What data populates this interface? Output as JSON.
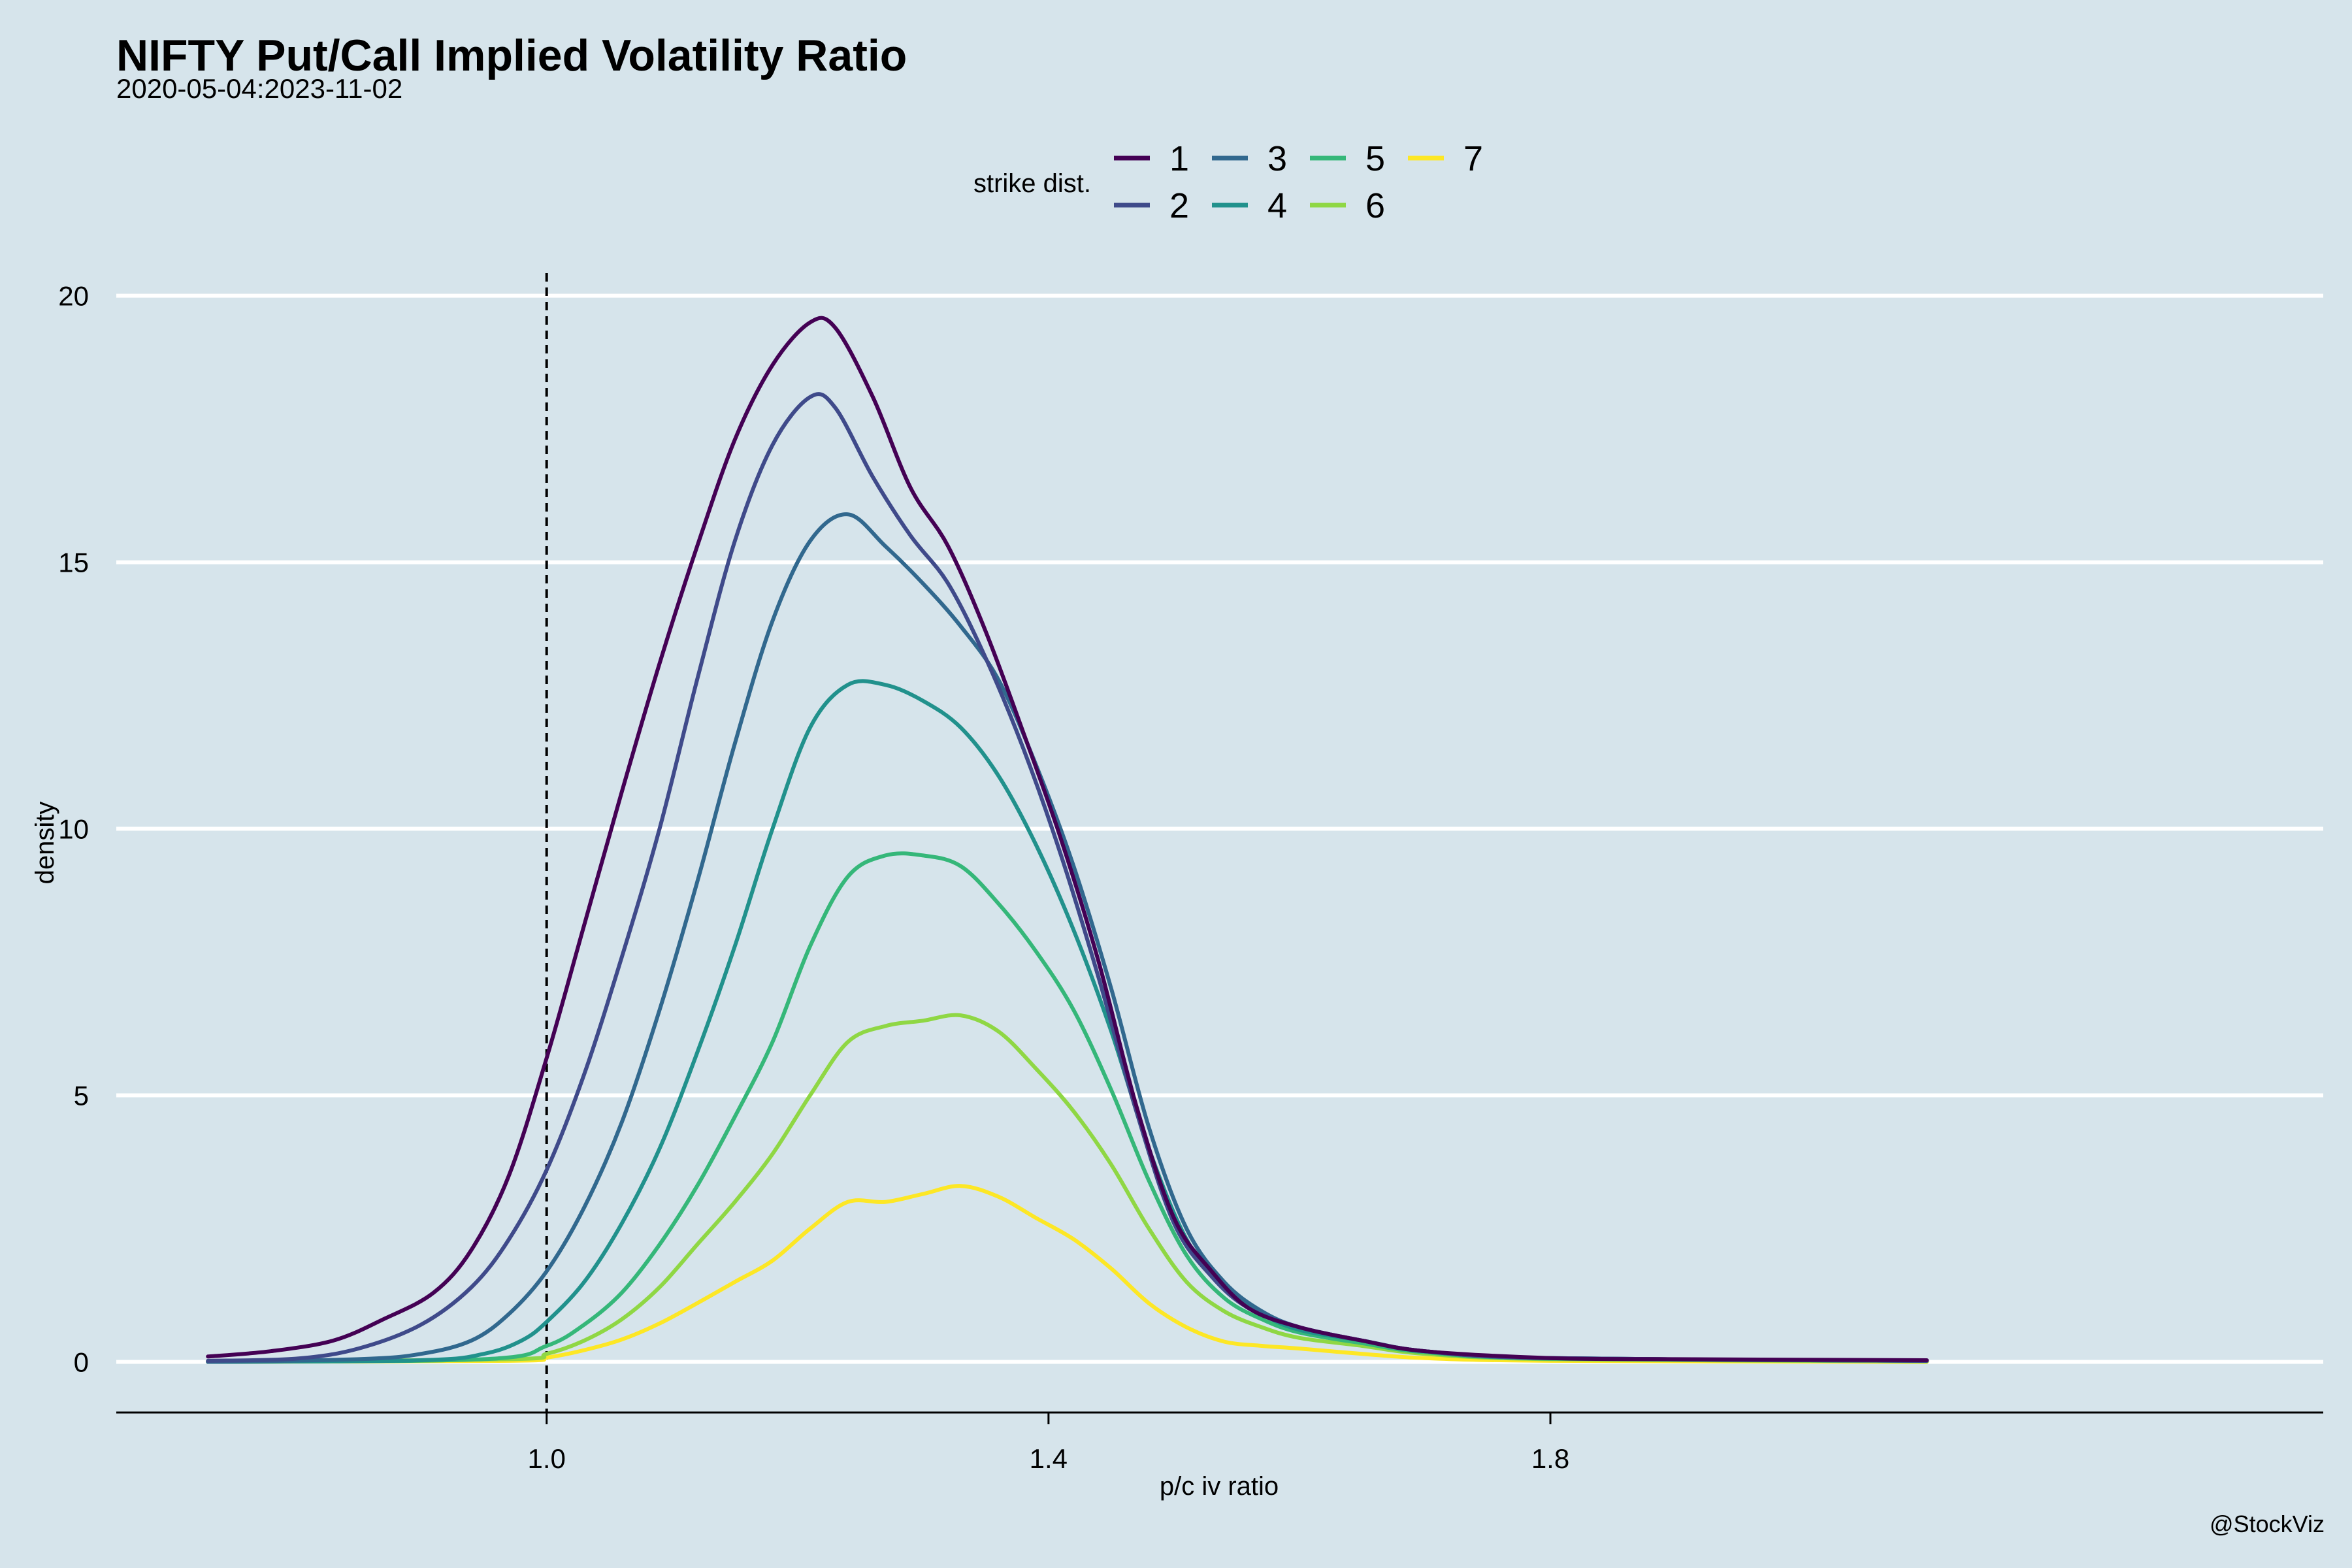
{
  "chart_data": {
    "type": "line",
    "title": "NIFTY Put/Call Implied Volatility Ratio",
    "subtitle": "2020-05-04:2023-11-02",
    "xlabel": "p/c iv ratio",
    "ylabel": "density",
    "caption": "@StockViz",
    "xlim": [
      0.657,
      2.416
    ],
    "ylim": [
      -0.95,
      20.4
    ],
    "xticks": [
      1.0,
      1.4,
      1.8
    ],
    "xtick_labels": [
      "1.0",
      "1.4",
      "1.8"
    ],
    "yticks": [
      0,
      5,
      10,
      15,
      20
    ],
    "ytick_labels": [
      "0",
      "5",
      "10",
      "15",
      "20"
    ],
    "reference_line": {
      "x": 1.0,
      "style": "dashed",
      "color": "#000000"
    },
    "grid": "horizontal major lines",
    "legend": {
      "title": "strike dist.",
      "position": "top"
    },
    "series": [
      {
        "name": "1",
        "color": "#440154",
        "points": [
          [
            0.73,
            0.1
          ],
          [
            0.78,
            0.2
          ],
          [
            0.83,
            0.4
          ],
          [
            0.87,
            0.8
          ],
          [
            0.91,
            1.3
          ],
          [
            0.94,
            2.1
          ],
          [
            0.97,
            3.5
          ],
          [
            1.0,
            5.7
          ],
          [
            1.03,
            8.2
          ],
          [
            1.06,
            10.7
          ],
          [
            1.09,
            13.1
          ],
          [
            1.12,
            15.3
          ],
          [
            1.15,
            17.3
          ],
          [
            1.18,
            18.7
          ],
          [
            1.21,
            19.5
          ],
          [
            1.23,
            19.4
          ],
          [
            1.26,
            18.1
          ],
          [
            1.29,
            16.4
          ],
          [
            1.32,
            15.3
          ],
          [
            1.35,
            13.7
          ],
          [
            1.38,
            11.8
          ],
          [
            1.41,
            9.8
          ],
          [
            1.44,
            7.5
          ],
          [
            1.47,
            4.8
          ],
          [
            1.5,
            2.7
          ],
          [
            1.53,
            1.7
          ],
          [
            1.56,
            1.0
          ],
          [
            1.6,
            0.65
          ],
          [
            1.65,
            0.4
          ],
          [
            1.7,
            0.2
          ],
          [
            1.8,
            0.07
          ],
          [
            1.9,
            0.05
          ],
          [
            2.0,
            0.04
          ],
          [
            2.1,
            0.03
          ]
        ]
      },
      {
        "name": "2",
        "color": "#3f4a8a",
        "points": [
          [
            0.73,
            0.02
          ],
          [
            0.8,
            0.06
          ],
          [
            0.85,
            0.25
          ],
          [
            0.9,
            0.7
          ],
          [
            0.94,
            1.4
          ],
          [
            0.97,
            2.3
          ],
          [
            1.0,
            3.6
          ],
          [
            1.03,
            5.4
          ],
          [
            1.06,
            7.6
          ],
          [
            1.09,
            10.0
          ],
          [
            1.12,
            12.8
          ],
          [
            1.15,
            15.4
          ],
          [
            1.18,
            17.2
          ],
          [
            1.21,
            18.1
          ],
          [
            1.23,
            17.9
          ],
          [
            1.26,
            16.6
          ],
          [
            1.29,
            15.5
          ],
          [
            1.32,
            14.6
          ],
          [
            1.35,
            13.2
          ],
          [
            1.38,
            11.5
          ],
          [
            1.41,
            9.5
          ],
          [
            1.44,
            7.2
          ],
          [
            1.47,
            4.7
          ],
          [
            1.5,
            2.6
          ],
          [
            1.53,
            1.6
          ],
          [
            1.56,
            1.0
          ],
          [
            1.6,
            0.65
          ],
          [
            1.65,
            0.4
          ],
          [
            1.7,
            0.2
          ],
          [
            1.8,
            0.07
          ],
          [
            2.1,
            0.02
          ]
        ]
      },
      {
        "name": "3",
        "color": "#31688e",
        "points": [
          [
            0.73,
            0.0
          ],
          [
            0.85,
            0.05
          ],
          [
            0.9,
            0.15
          ],
          [
            0.94,
            0.4
          ],
          [
            0.97,
            0.9
          ],
          [
            1.0,
            1.7
          ],
          [
            1.03,
            2.9
          ],
          [
            1.06,
            4.5
          ],
          [
            1.09,
            6.6
          ],
          [
            1.12,
            9.0
          ],
          [
            1.15,
            11.6
          ],
          [
            1.18,
            13.9
          ],
          [
            1.21,
            15.4
          ],
          [
            1.24,
            15.9
          ],
          [
            1.27,
            15.3
          ],
          [
            1.3,
            14.6
          ],
          [
            1.33,
            13.8
          ],
          [
            1.36,
            12.8
          ],
          [
            1.39,
            11.2
          ],
          [
            1.42,
            9.3
          ],
          [
            1.45,
            7.0
          ],
          [
            1.48,
            4.4
          ],
          [
            1.51,
            2.5
          ],
          [
            1.54,
            1.5
          ],
          [
            1.57,
            0.95
          ],
          [
            1.6,
            0.65
          ],
          [
            1.65,
            0.4
          ],
          [
            1.7,
            0.2
          ],
          [
            1.8,
            0.07
          ],
          [
            2.1,
            0.02
          ]
        ]
      },
      {
        "name": "4",
        "color": "#21918c",
        "points": [
          [
            0.73,
            0.0
          ],
          [
            0.9,
            0.03
          ],
          [
            0.95,
            0.15
          ],
          [
            0.98,
            0.4
          ],
          [
            1.0,
            0.75
          ],
          [
            1.03,
            1.5
          ],
          [
            1.06,
            2.6
          ],
          [
            1.09,
            4.0
          ],
          [
            1.12,
            5.8
          ],
          [
            1.15,
            7.8
          ],
          [
            1.18,
            10.0
          ],
          [
            1.21,
            11.9
          ],
          [
            1.24,
            12.7
          ],
          [
            1.27,
            12.7
          ],
          [
            1.3,
            12.4
          ],
          [
            1.33,
            11.9
          ],
          [
            1.36,
            11.0
          ],
          [
            1.39,
            9.7
          ],
          [
            1.42,
            8.1
          ],
          [
            1.45,
            6.2
          ],
          [
            1.48,
            4.0
          ],
          [
            1.51,
            2.3
          ],
          [
            1.54,
            1.4
          ],
          [
            1.57,
            0.9
          ],
          [
            1.6,
            0.6
          ],
          [
            1.65,
            0.4
          ],
          [
            1.7,
            0.2
          ],
          [
            1.8,
            0.07
          ],
          [
            2.1,
            0.02
          ]
        ]
      },
      {
        "name": "5",
        "color": "#35b779",
        "points": [
          [
            0.73,
            0.0
          ],
          [
            0.95,
            0.05
          ],
          [
            1.0,
            0.3
          ],
          [
            1.03,
            0.7
          ],
          [
            1.06,
            1.3
          ],
          [
            1.09,
            2.2
          ],
          [
            1.12,
            3.3
          ],
          [
            1.15,
            4.6
          ],
          [
            1.18,
            6.0
          ],
          [
            1.21,
            7.8
          ],
          [
            1.24,
            9.1
          ],
          [
            1.27,
            9.5
          ],
          [
            1.3,
            9.5
          ],
          [
            1.33,
            9.3
          ],
          [
            1.36,
            8.6
          ],
          [
            1.39,
            7.7
          ],
          [
            1.42,
            6.6
          ],
          [
            1.45,
            5.1
          ],
          [
            1.48,
            3.4
          ],
          [
            1.51,
            2.0
          ],
          [
            1.54,
            1.2
          ],
          [
            1.57,
            0.8
          ],
          [
            1.6,
            0.55
          ],
          [
            1.65,
            0.35
          ],
          [
            1.7,
            0.18
          ],
          [
            1.8,
            0.06
          ],
          [
            2.1,
            0.02
          ]
        ]
      },
      {
        "name": "6",
        "color": "#8fd744",
        "points": [
          [
            0.73,
            0.0
          ],
          [
            0.97,
            0.05
          ],
          [
            1.0,
            0.15
          ],
          [
            1.03,
            0.4
          ],
          [
            1.06,
            0.8
          ],
          [
            1.09,
            1.4
          ],
          [
            1.12,
            2.2
          ],
          [
            1.15,
            3.0
          ],
          [
            1.18,
            3.9
          ],
          [
            1.21,
            5.0
          ],
          [
            1.24,
            6.0
          ],
          [
            1.27,
            6.3
          ],
          [
            1.3,
            6.4
          ],
          [
            1.33,
            6.5
          ],
          [
            1.36,
            6.2
          ],
          [
            1.39,
            5.5
          ],
          [
            1.42,
            4.7
          ],
          [
            1.45,
            3.7
          ],
          [
            1.48,
            2.5
          ],
          [
            1.51,
            1.5
          ],
          [
            1.54,
            0.95
          ],
          [
            1.57,
            0.65
          ],
          [
            1.6,
            0.45
          ],
          [
            1.65,
            0.3
          ],
          [
            1.7,
            0.15
          ],
          [
            1.8,
            0.05
          ],
          [
            2.1,
            0.01
          ]
        ]
      },
      {
        "name": "7",
        "color": "#fde725",
        "points": [
          [
            0.73,
            0.0
          ],
          [
            0.97,
            0.02
          ],
          [
            1.0,
            0.08
          ],
          [
            1.03,
            0.22
          ],
          [
            1.06,
            0.42
          ],
          [
            1.09,
            0.72
          ],
          [
            1.12,
            1.1
          ],
          [
            1.15,
            1.5
          ],
          [
            1.18,
            1.9
          ],
          [
            1.21,
            2.5
          ],
          [
            1.24,
            3.0
          ],
          [
            1.27,
            3.0
          ],
          [
            1.3,
            3.15
          ],
          [
            1.33,
            3.3
          ],
          [
            1.36,
            3.1
          ],
          [
            1.39,
            2.7
          ],
          [
            1.42,
            2.3
          ],
          [
            1.45,
            1.75
          ],
          [
            1.48,
            1.1
          ],
          [
            1.51,
            0.65
          ],
          [
            1.54,
            0.38
          ],
          [
            1.57,
            0.3
          ],
          [
            1.6,
            0.25
          ],
          [
            1.65,
            0.15
          ],
          [
            1.7,
            0.07
          ],
          [
            1.8,
            0.02
          ],
          [
            2.1,
            0.0
          ]
        ]
      }
    ]
  }
}
